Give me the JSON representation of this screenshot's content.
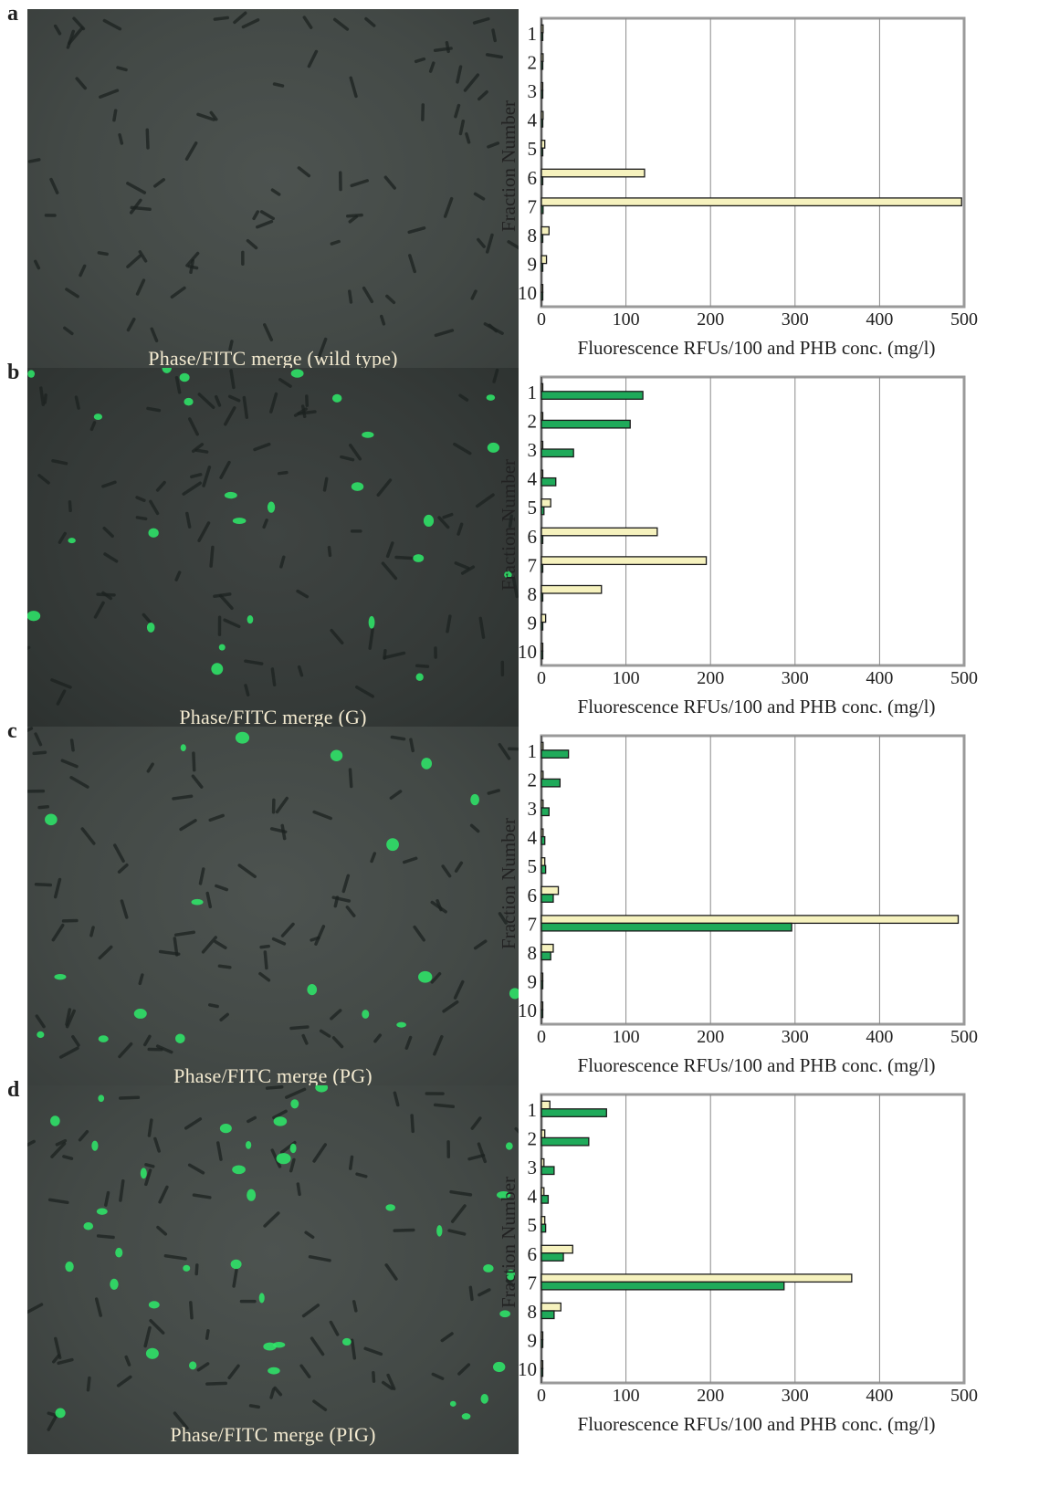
{
  "colors": {
    "phb_bar": "#f6f2be",
    "fluor_bar": "#1faa5a",
    "bar_stroke": "#1a1a1a",
    "micro_label": "#f3ead0"
  },
  "panels": [
    {
      "letter": "a",
      "micro_label": "Phase/FITC merge (wild type)"
    },
    {
      "letter": "b",
      "micro_label": "Phase/FITC merge (G)"
    },
    {
      "letter": "c",
      "micro_label": "Phase/FITC merge (PG)"
    },
    {
      "letter": "d",
      "micro_label": "Phase/FITC merge (PIG)"
    }
  ],
  "chart_data": [
    {
      "type": "bar",
      "orientation": "horizontal",
      "categories": [
        "1",
        "2",
        "3",
        "4",
        "5",
        "6",
        "7",
        "8",
        "9",
        "10"
      ],
      "series": [
        {
          "values": [
            2,
            2,
            1,
            2,
            4,
            122,
            497,
            9,
            6,
            0
          ]
        },
        {
          "values": [
            1,
            1,
            1,
            1,
            1,
            0,
            2,
            1,
            0,
            0
          ]
        }
      ],
      "xlabel": "Fluorescence RFUs/100 and PHB conc. (mg/l)",
      "ylabel": "Fraction Number",
      "xlim": [
        0,
        500
      ],
      "xticks": [
        "0",
        "100",
        "200",
        "300",
        "400",
        "500"
      ],
      "grid": "vertical"
    },
    {
      "type": "bar",
      "orientation": "horizontal",
      "categories": [
        "1",
        "2",
        "3",
        "4",
        "5",
        "6",
        "7",
        "8",
        "9",
        "10"
      ],
      "series": [
        {
          "values": [
            0,
            0,
            1,
            1,
            11,
            137,
            195,
            71,
            5,
            0
          ]
        },
        {
          "values": [
            120,
            105,
            38,
            17,
            3,
            1,
            1,
            1,
            0,
            0
          ]
        }
      ],
      "xlabel": "Fluorescence RFUs/100 and PHB conc. (mg/l)",
      "ylabel": "Fraction Number",
      "xlim": [
        0,
        500
      ],
      "xticks": [
        "0",
        "100",
        "200",
        "300",
        "400",
        "500"
      ],
      "grid": "vertical"
    },
    {
      "type": "bar",
      "orientation": "horizontal",
      "categories": [
        "1",
        "2",
        "3",
        "4",
        "5",
        "6",
        "7",
        "8",
        "9",
        "10"
      ],
      "series": [
        {
          "values": [
            2,
            2,
            2,
            2,
            4,
            20,
            493,
            14,
            0,
            0
          ]
        },
        {
          "values": [
            32,
            22,
            9,
            4,
            5,
            14,
            296,
            11,
            1,
            0
          ]
        }
      ],
      "xlabel": "Fluorescence RFUs/100 and PHB conc. (mg/l)",
      "ylabel": "Fraction Number",
      "xlim": [
        0,
        500
      ],
      "xticks": [
        "0",
        "100",
        "200",
        "300",
        "400",
        "500"
      ],
      "grid": "vertical"
    },
    {
      "type": "bar",
      "orientation": "horizontal",
      "categories": [
        "1",
        "2",
        "3",
        "4",
        "5",
        "6",
        "7",
        "8",
        "9",
        "10"
      ],
      "series": [
        {
          "values": [
            10,
            4,
            3,
            3,
            4,
            37,
            367,
            23,
            0,
            0
          ]
        },
        {
          "values": [
            77,
            56,
            15,
            8,
            5,
            26,
            287,
            15,
            1,
            0
          ]
        }
      ],
      "xlabel": "Fluorescence RFUs/100 and PHB conc. (mg/l)",
      "ylabel": "Fraction Number",
      "xlim": [
        0,
        500
      ],
      "xticks": [
        "0",
        "100",
        "200",
        "300",
        "400",
        "500"
      ],
      "grid": "vertical"
    }
  ]
}
